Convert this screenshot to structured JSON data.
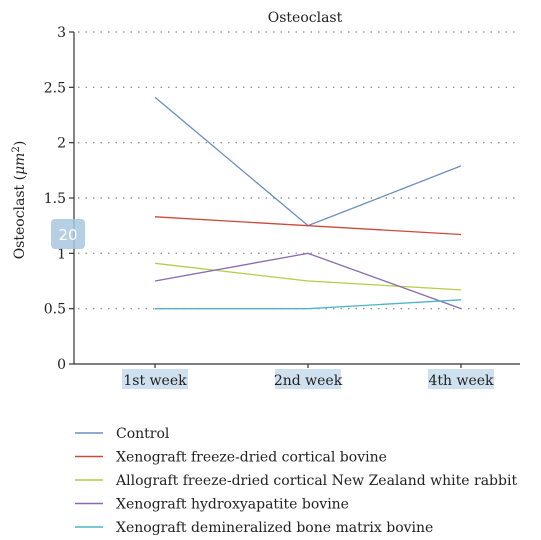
{
  "chart_data": {
    "type": "line",
    "title": "Osteoclast",
    "ylabel_main": "Osteoclast (",
    "ylabel_unit": "μm",
    "ylabel_sup": "2",
    "ylabel_end": ")",
    "categories": [
      "1st week",
      "2nd week",
      "4th week"
    ],
    "ylim": [
      0,
      3
    ],
    "yticks": [
      "0",
      "0.5",
      "1",
      "1.5",
      "2",
      "2.5",
      "3"
    ],
    "grid": true,
    "legend_position": "bottom",
    "series": [
      {
        "name": "Control",
        "color": "#6b8fbf",
        "values": [
          2.41,
          1.25,
          1.79
        ]
      },
      {
        "name": "Xenograft freeze-dried cortical bovine",
        "color": "#cc4a3c",
        "values": [
          1.33,
          1.25,
          1.17
        ]
      },
      {
        "name": "Allograft freeze-dried cortical New Zealand white rabbit",
        "color": "#b7cc4a",
        "values": [
          0.91,
          0.75,
          0.67
        ]
      },
      {
        "name": "Xenograft hydroxyapatite bovine",
        "color": "#8a6aae",
        "values": [
          0.75,
          1.0,
          0.5
        ]
      },
      {
        "name": "Xenograft demineralized bone matrix bovine",
        "color": "#4fb3c9",
        "values": [
          0.5,
          0.5,
          0.58
        ]
      }
    ]
  },
  "badge": {
    "text": "20"
  }
}
